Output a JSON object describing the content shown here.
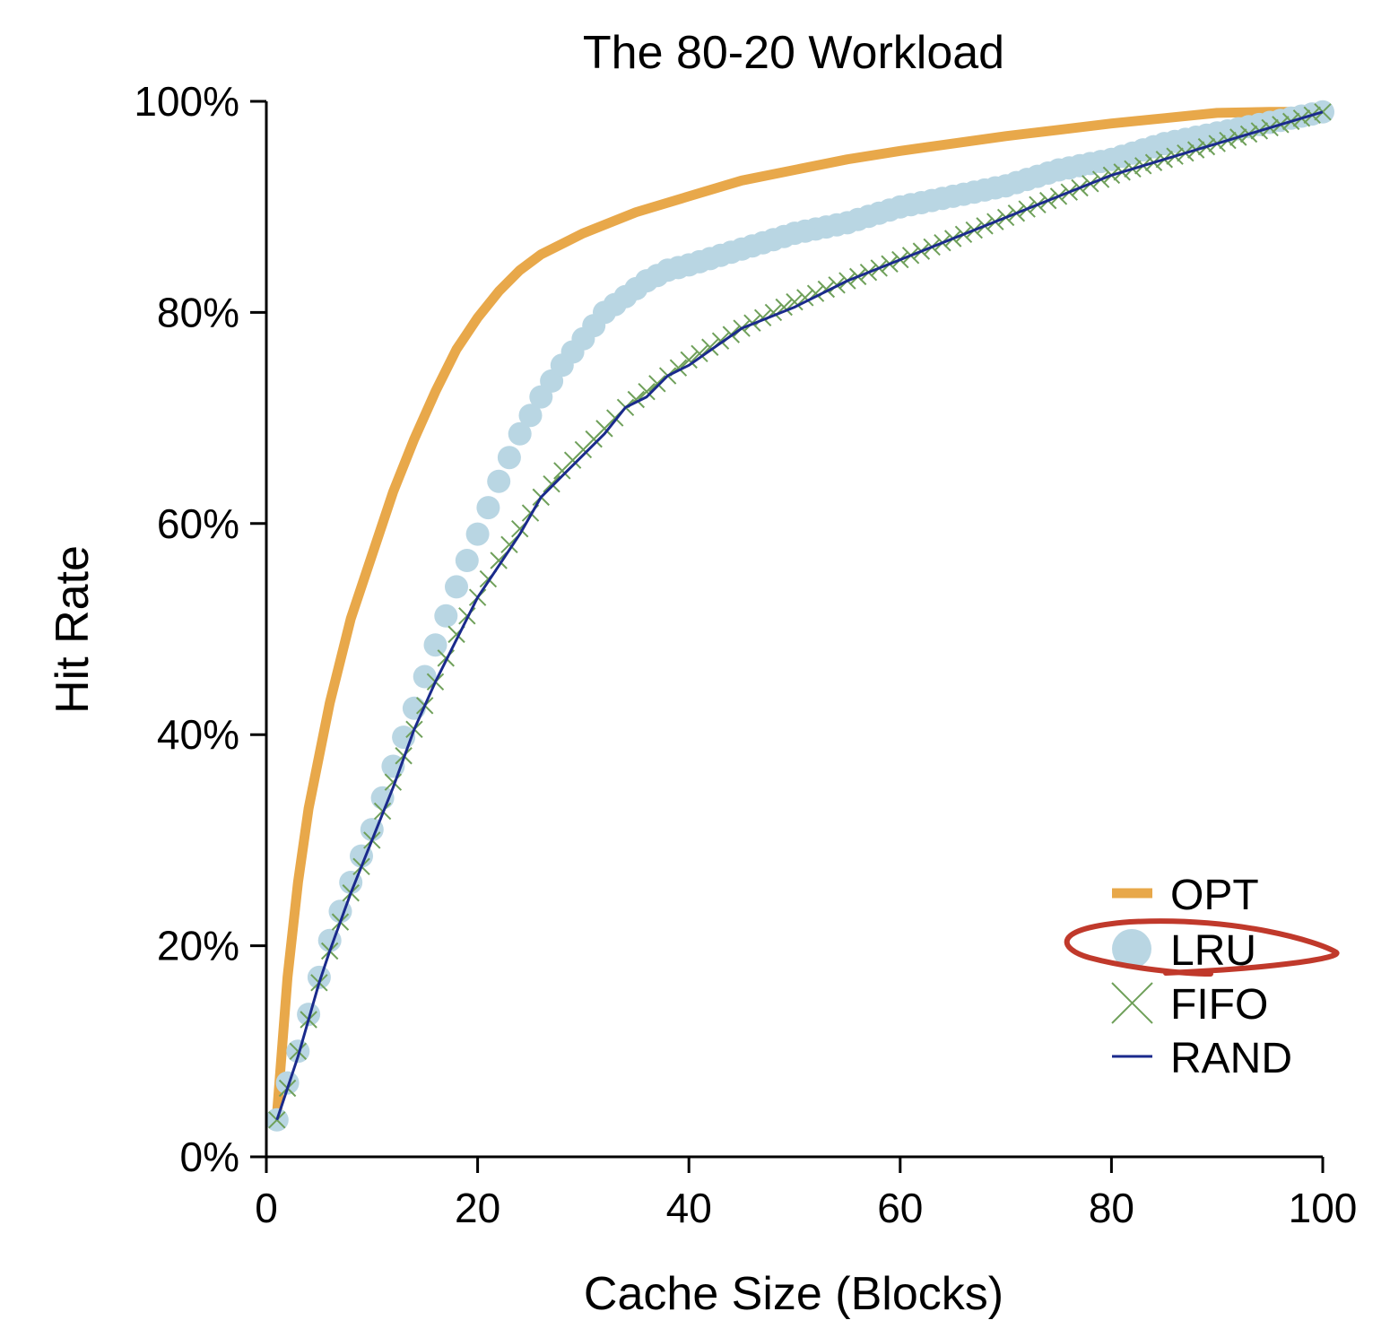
{
  "chart_data": {
    "type": "line",
    "title": "The 80-20 Workload",
    "xlabel": "Cache Size (Blocks)",
    "ylabel": "Hit Rate",
    "xlim": [
      0,
      100
    ],
    "ylim": [
      0,
      100
    ],
    "xticks": [
      0,
      20,
      40,
      60,
      80,
      100
    ],
    "xtick_labels": [
      "0",
      "20",
      "40",
      "60",
      "80",
      "100"
    ],
    "yticks": [
      0,
      20,
      40,
      60,
      80,
      100
    ],
    "ytick_labels": [
      "0%",
      "20%",
      "40%",
      "60%",
      "80%",
      "100%"
    ],
    "grid": false,
    "legend_position": "bottom-right",
    "series": [
      {
        "name": "OPT",
        "style": "thick-line",
        "color": "#E8A84A",
        "x": [
          1,
          2,
          3,
          4,
          5,
          6,
          8,
          10,
          12,
          14,
          16,
          18,
          20,
          22,
          24,
          26,
          28,
          30,
          35,
          40,
          45,
          50,
          55,
          60,
          65,
          70,
          75,
          80,
          85,
          90,
          95,
          100
        ],
        "y": [
          4,
          17,
          26,
          33,
          38,
          43,
          51,
          57,
          63,
          68,
          72.5,
          76.5,
          79.5,
          82,
          84,
          85.5,
          86.5,
          87.5,
          89.5,
          91,
          92.5,
          93.5,
          94.5,
          95.3,
          96,
          96.7,
          97.3,
          97.9,
          98.4,
          98.9,
          99,
          99
        ]
      },
      {
        "name": "LRU",
        "style": "circle-markers",
        "color": "#B9D6E3",
        "x": [
          1,
          2,
          3,
          4,
          5,
          6,
          8,
          10,
          12,
          14,
          16,
          18,
          20,
          22,
          24,
          26,
          28,
          30,
          32,
          34,
          36,
          38,
          40,
          45,
          50,
          55,
          60,
          65,
          70,
          75,
          80,
          85,
          90,
          95,
          100
        ],
        "y": [
          3.5,
          7,
          10,
          13.5,
          17,
          20.5,
          26,
          31,
          37,
          42.5,
          48.5,
          54,
          59,
          64,
          68.5,
          72,
          75,
          77.5,
          80,
          81.5,
          83,
          84,
          84.5,
          86,
          87.5,
          88.5,
          90,
          91,
          92,
          93.5,
          94.5,
          96,
          97,
          98,
          99
        ]
      },
      {
        "name": "FIFO",
        "style": "x-markers",
        "color": "#6FA05A",
        "x": [
          1,
          2,
          3,
          4,
          5,
          6,
          8,
          10,
          12,
          14,
          16,
          18,
          20,
          22,
          24,
          26,
          28,
          30,
          32,
          34,
          36,
          38,
          40,
          45,
          50,
          55,
          60,
          65,
          70,
          75,
          80,
          85,
          90,
          95,
          100
        ],
        "y": [
          3.5,
          6.5,
          10,
          13,
          16.5,
          19.5,
          25,
          30,
          35.5,
          40.5,
          45,
          49.5,
          53,
          56.5,
          59.5,
          62.5,
          65,
          67,
          69,
          71,
          72.5,
          74,
          75.5,
          78.5,
          81,
          83,
          85,
          87,
          89,
          91,
          93,
          94.5,
          96,
          97.5,
          99
        ]
      },
      {
        "name": "RAND",
        "style": "thin-line",
        "color": "#1A2A8C",
        "x": [
          1,
          2,
          3,
          4,
          5,
          6,
          8,
          10,
          12,
          14,
          16,
          18,
          20,
          22,
          24,
          26,
          28,
          30,
          32,
          34,
          36,
          38,
          40,
          45,
          50,
          55,
          60,
          65,
          70,
          75,
          80,
          85,
          90,
          95,
          100
        ],
        "y": [
          3.5,
          6.5,
          9.5,
          13,
          16.5,
          19.5,
          25,
          30,
          35,
          40.5,
          45,
          49,
          53,
          56,
          59,
          62.5,
          64.5,
          66.5,
          68.5,
          71,
          72,
          74,
          75,
          78.5,
          80.5,
          83,
          85,
          87,
          89,
          91,
          93,
          94.5,
          96,
          97.5,
          99
        ]
      }
    ]
  }
}
